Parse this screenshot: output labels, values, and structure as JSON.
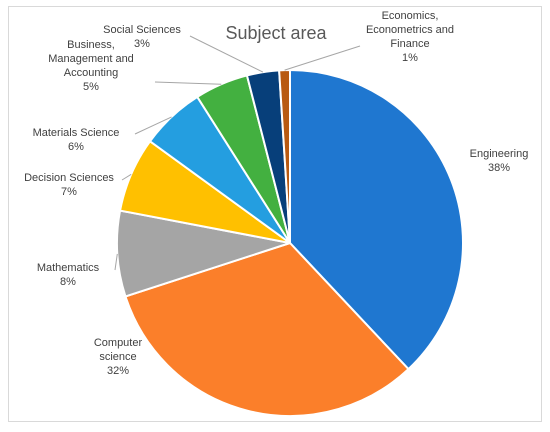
{
  "chart_data": {
    "type": "pie",
    "title": "Subject area",
    "slices": [
      {
        "lines": [
          "Engineering",
          "38%"
        ],
        "value": 38,
        "color": "#1F77D0"
      },
      {
        "lines": [
          "Computer",
          "science",
          "32%"
        ],
        "value": 32,
        "color": "#FB7F2A"
      },
      {
        "lines": [
          "Mathematics",
          "8%"
        ],
        "value": 8,
        "color": "#A5A5A5"
      },
      {
        "lines": [
          "Decision Sciences",
          "7%"
        ],
        "value": 7,
        "color": "#FFC000"
      },
      {
        "lines": [
          "Materials Science",
          "6%"
        ],
        "value": 6,
        "color": "#249EE0"
      },
      {
        "lines": [
          "Business,",
          "Management and",
          "Accounting",
          "5%"
        ],
        "value": 5,
        "color": "#43B040"
      },
      {
        "lines": [
          "Social Sciences",
          "3%"
        ],
        "value": 3,
        "color": "#073F7A"
      },
      {
        "lines": [
          "Economics,",
          "Econometrics and",
          "Finance",
          "1%"
        ],
        "value": 1,
        "color": "#B85A12"
      }
    ],
    "legend": "none",
    "data_labels": "outside with leader lines"
  }
}
